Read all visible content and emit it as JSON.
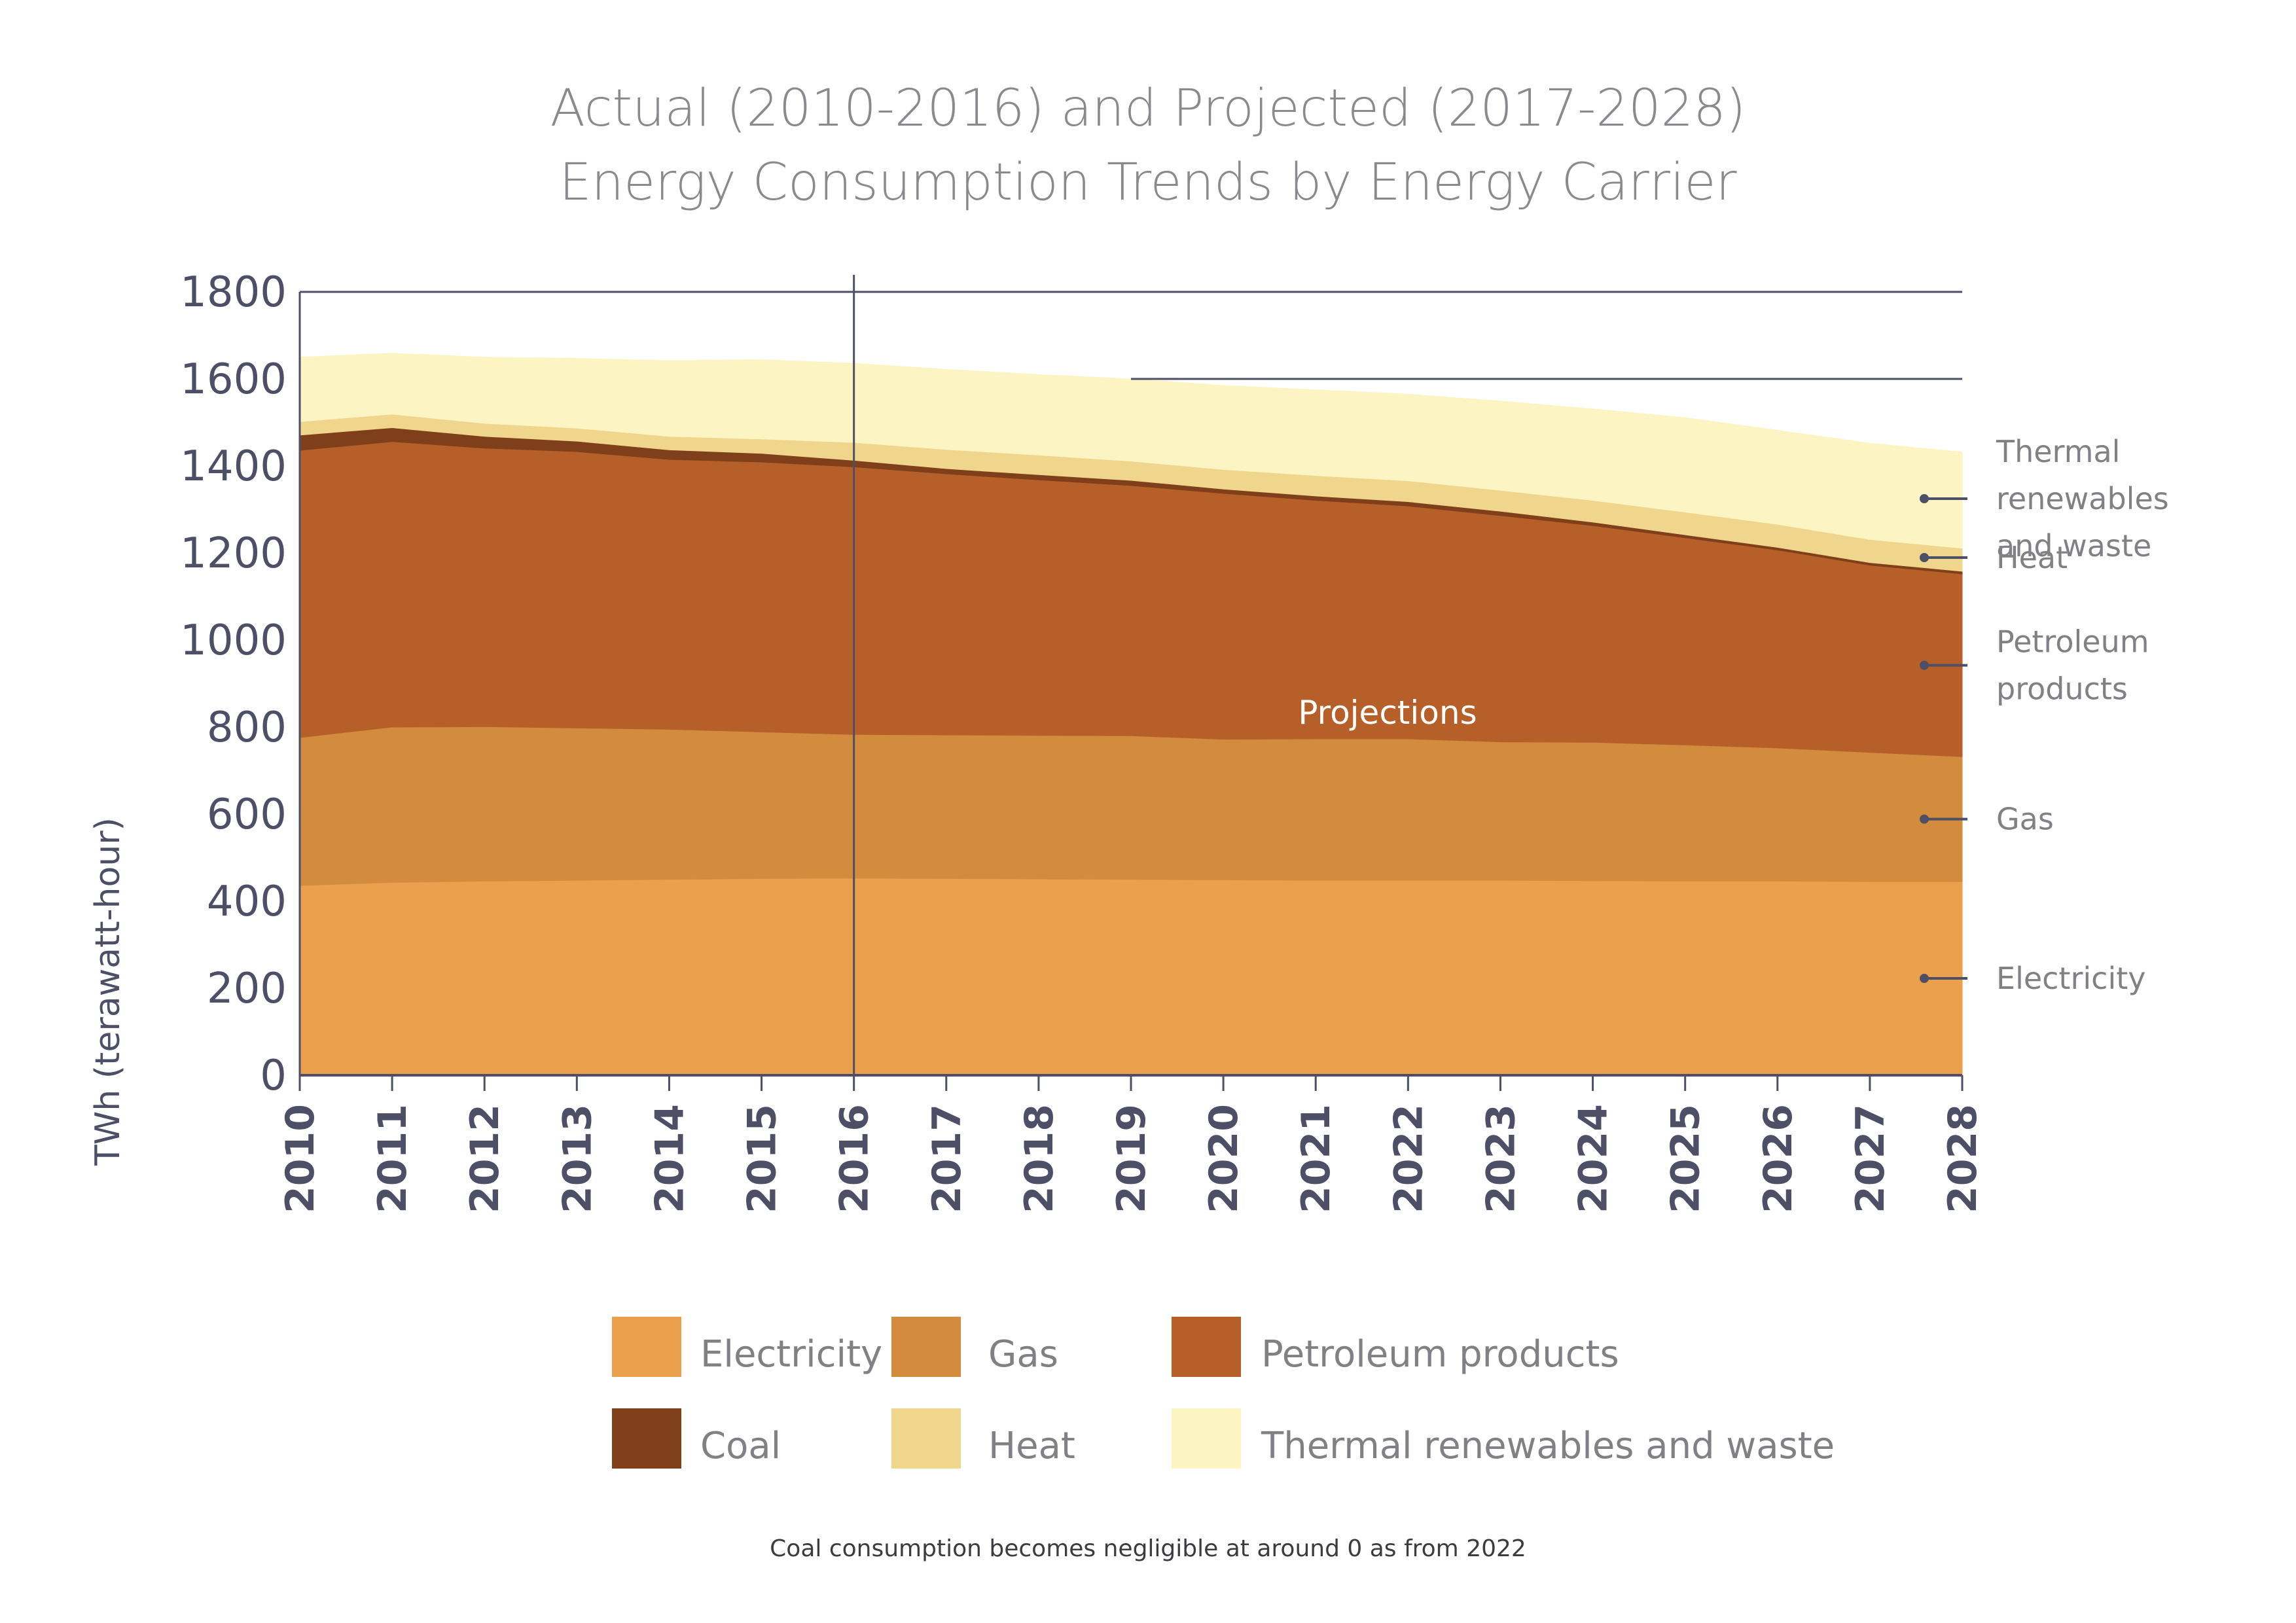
{
  "title_lines": [
    "Actual (2010-2016) and Projected (2017-2028)",
    "Energy Consumption Trends by Energy Carrier"
  ],
  "footnote": "Coal consumption becomes negligible at around 0 as from 2022",
  "chart_data": {
    "type": "area",
    "stacked": true,
    "x": [
      "2010",
      "2011",
      "2012",
      "2013",
      "2014",
      "2015",
      "2016",
      "2017",
      "2018",
      "2019",
      "2020",
      "2021",
      "2022",
      "2023",
      "2024",
      "2025",
      "2026",
      "2027",
      "2028"
    ],
    "ylabel": "TWh (terawatt-hour)",
    "ylim": [
      0,
      1800
    ],
    "yticks": [
      "0",
      "200",
      "400",
      "600",
      "800",
      "1000",
      "1200",
      "1400",
      "1600",
      "1800"
    ],
    "grid_lines": [
      1600,
      1800
    ],
    "divider_year": "2016",
    "annotation": "Projections",
    "legend_position": "bottom",
    "series": [
      {
        "name": "Electricity",
        "color": "#EBA04E",
        "values": [
          436,
          443,
          446,
          448,
          450,
          452,
          453,
          452,
          451,
          450,
          449,
          448,
          448,
          448,
          447,
          446,
          446,
          445,
          445
        ]
      },
      {
        "name": "Gas",
        "color": "#D38B3E",
        "values": [
          340,
          357,
          355,
          350,
          345,
          337,
          330,
          330,
          330,
          330,
          323,
          325,
          325,
          318,
          318,
          313,
          306,
          297,
          287
        ]
      },
      {
        "name": "Petroleum products",
        "color": "#B75F29",
        "values": [
          660,
          656,
          640,
          635,
          620,
          620,
          615,
          600,
          587,
          575,
          565,
          548,
          535,
          520,
          498,
          476,
          455,
          430,
          420
        ]
      },
      {
        "name": "Coal",
        "color": "#7E3F1A",
        "values": [
          35,
          32,
          27,
          24,
          22,
          20,
          15,
          12,
          12,
          12,
          10,
          10,
          10,
          10,
          8,
          7,
          6,
          6,
          6
        ]
      },
      {
        "name": "Heat",
        "color": "#F0D58D",
        "values": [
          31,
          31,
          30,
          30,
          31,
          33,
          41,
          44,
          45,
          44,
          45,
          47,
          48,
          48,
          50,
          52,
          53,
          53,
          53
        ]
      },
      {
        "name": "Thermal renewables and waste",
        "color": "#FDF4C3",
        "values": [
          148,
          140,
          152,
          160,
          174,
          182,
          182,
          184,
          185,
          189,
          193,
          197,
          199,
          205,
          210,
          217,
          216,
          221,
          221
        ]
      }
    ],
    "side_labels": [
      {
        "series": "Thermal renewables and waste",
        "lines": [
          "Thermal",
          "renewables",
          "and waste"
        ]
      },
      {
        "series": "Heat",
        "lines": [
          "Heat"
        ]
      },
      {
        "series": "Petroleum products",
        "lines": [
          "Petroleum",
          "products"
        ]
      },
      {
        "series": "Gas",
        "lines": [
          "Gas"
        ]
      },
      {
        "series": "Electricity",
        "lines": [
          "Electricity"
        ]
      }
    ],
    "legend": [
      {
        "label": "Electricity",
        "color": "#EBA04E"
      },
      {
        "label": "Gas",
        "color": "#D38B3E"
      },
      {
        "label": "Petroleum products",
        "color": "#B75F29"
      },
      {
        "label": "Coal",
        "color": "#7E3F1A"
      },
      {
        "label": "Heat",
        "color": "#F0D58D"
      },
      {
        "label": "Thermal renewables and waste",
        "color": "#FDF4C3"
      }
    ]
  }
}
